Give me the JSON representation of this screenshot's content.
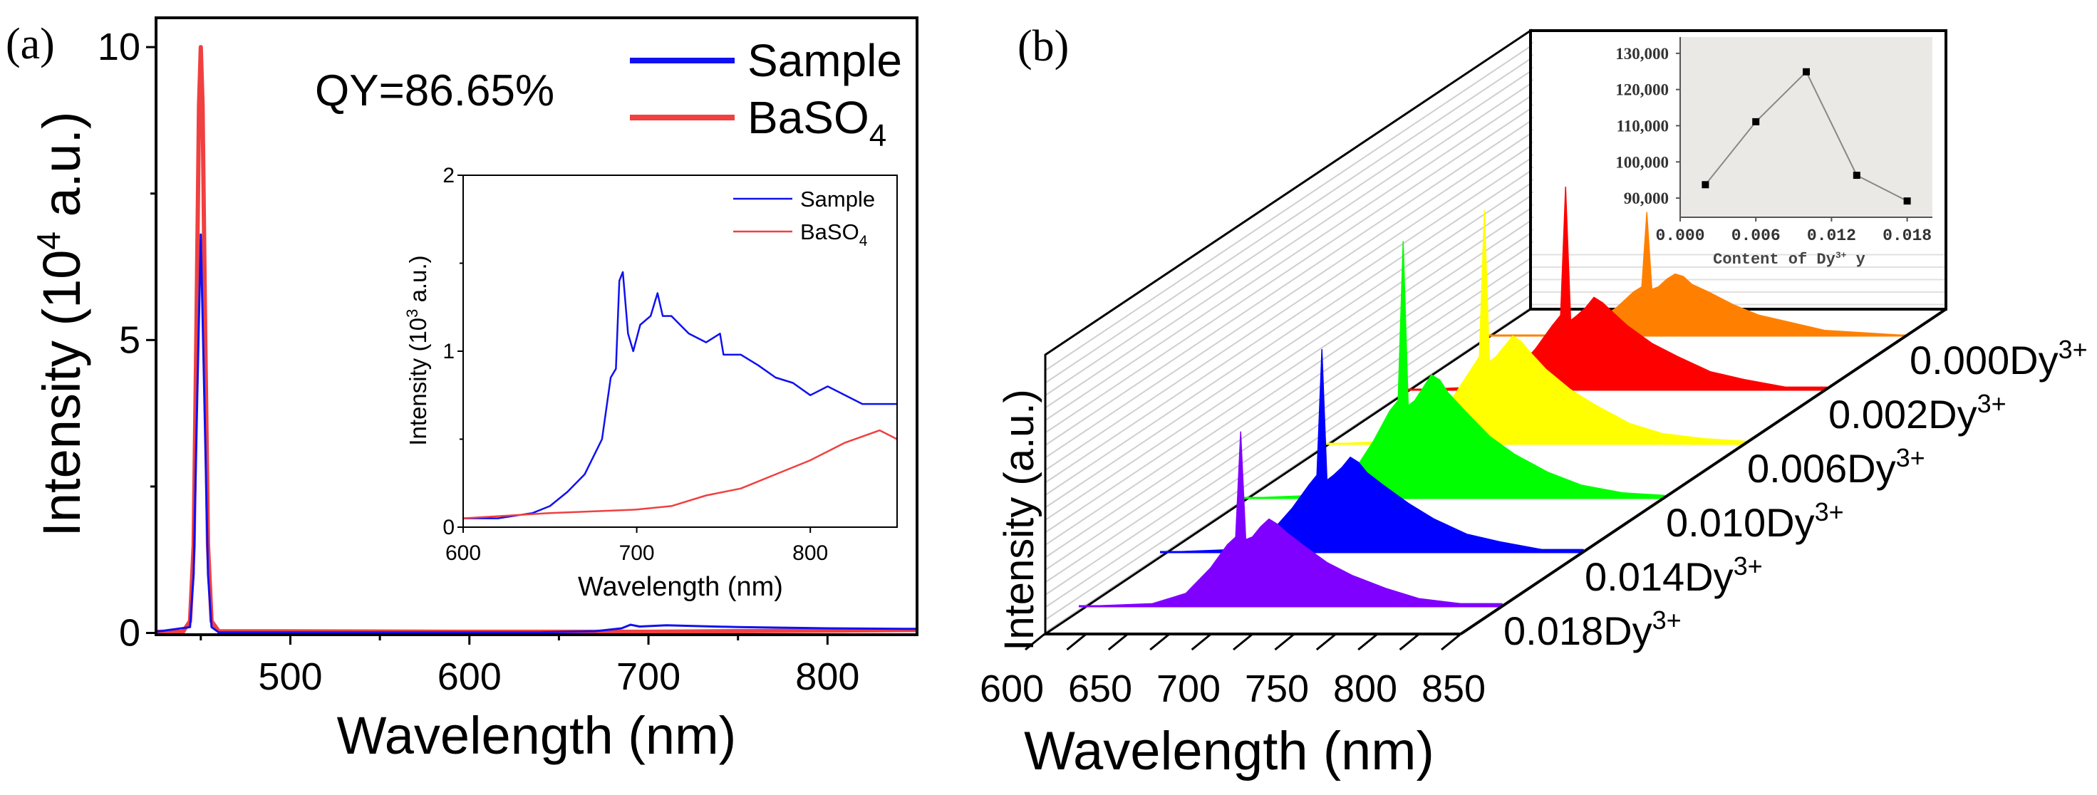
{
  "chart_data": [
    {
      "id": "a-main",
      "panel_label": "(a)",
      "type": "line",
      "xlabel": "Wavelength (nm)",
      "ylabel": {
        "pre": "Intensity (10",
        "sup": "4",
        "post": " a.u.)"
      },
      "xlim": [
        425,
        850
      ],
      "ylim": [
        -0.03,
        10.5
      ],
      "xticks": [
        500,
        600,
        700,
        800
      ],
      "yticks": [
        0,
        5,
        10
      ],
      "annotation": "QY=86.65%",
      "legend_position": "top-right",
      "legend": [
        {
          "text": "Sample",
          "sub": "",
          "color": "#1010f0"
        },
        {
          "text": "BaSO",
          "sub": "4",
          "color": "#f04040"
        }
      ],
      "series": [
        {
          "name": "BaSO4",
          "color": "#f04040",
          "x": [
            425,
            440,
            444,
            446,
            447.5,
            449,
            450,
            451,
            452.5,
            454,
            456,
            460,
            600,
            700,
            800,
            850
          ],
          "y": [
            0.02,
            0.02,
            0.2,
            1.5,
            5,
            9,
            10,
            9,
            5,
            1.5,
            0.2,
            0.03,
            0.02,
            0.02,
            0.04,
            0.05
          ]
        },
        {
          "name": "Sample",
          "color": "#1010f0",
          "x": [
            425,
            444,
            446,
            448,
            450,
            452,
            454,
            456,
            460,
            640,
            670,
            685,
            690,
            695,
            710,
            750,
            800,
            850
          ],
          "y": [
            0.02,
            0.1,
            1,
            4,
            6.8,
            4,
            1,
            0.1,
            0.01,
            0.01,
            0.03,
            0.08,
            0.14,
            0.11,
            0.13,
            0.1,
            0.08,
            0.07
          ]
        }
      ]
    },
    {
      "id": "a-inset",
      "type": "line",
      "xlabel": "Wavelength (nm)",
      "ylabel": {
        "pre": "Intensity (10",
        "sup": "3",
        "post": " a.u.)"
      },
      "xlim": [
        600,
        850
      ],
      "ylim": [
        0,
        2
      ],
      "xticks": [
        600,
        700,
        800
      ],
      "yticks": [
        0,
        1,
        2
      ],
      "legend_position": "top-right",
      "legend": [
        {
          "text": "Sample",
          "sub": "",
          "color": "#1010f0"
        },
        {
          "text": "BaSO",
          "sub": "4",
          "color": "#f04040"
        }
      ],
      "series": [
        {
          "name": "Sample",
          "color": "#1010f0",
          "x": [
            600,
            620,
            640,
            650,
            660,
            670,
            680,
            685,
            688,
            690,
            692,
            695,
            698,
            702,
            708,
            712,
            715,
            720,
            725,
            730,
            740,
            748,
            750,
            760,
            770,
            780,
            790,
            800,
            810,
            820,
            830,
            840,
            850
          ],
          "y": [
            0.05,
            0.05,
            0.08,
            0.12,
            0.2,
            0.3,
            0.5,
            0.85,
            0.9,
            1.4,
            1.45,
            1.1,
            1.0,
            1.15,
            1.2,
            1.33,
            1.2,
            1.2,
            1.15,
            1.1,
            1.05,
            1.1,
            0.98,
            0.98,
            0.92,
            0.85,
            0.82,
            0.75,
            0.8,
            0.75,
            0.7,
            0.7,
            0.7
          ]
        },
        {
          "name": "BaSO4",
          "color": "#f04040",
          "x": [
            600,
            650,
            700,
            720,
            740,
            760,
            780,
            800,
            820,
            840,
            850
          ],
          "y": [
            0.05,
            0.08,
            0.1,
            0.12,
            0.18,
            0.22,
            0.3,
            0.38,
            0.48,
            0.55,
            0.5
          ]
        }
      ]
    },
    {
      "id": "b-3d",
      "panel_label": "(b)",
      "type": "area",
      "xlabel": "Wavelength (nm)",
      "ylabel": "Intensity (a.u.)",
      "xlim": [
        600,
        850
      ],
      "xticks": [
        600,
        650,
        700,
        750,
        800,
        850
      ],
      "x": [
        600,
        640,
        660,
        675,
        685,
        690,
        693,
        696,
        700,
        705,
        710,
        715,
        720,
        730,
        745,
        760,
        780,
        800,
        825,
        850
      ],
      "series": [
        {
          "label": "0.000Dy",
          "sup": "3+",
          "color": "#ff8000",
          "values": [
            0,
            0,
            4,
            11,
            17,
            19,
            48,
            18,
            19,
            22,
            24,
            23,
            20,
            17,
            12,
            8,
            5,
            2,
            1,
            0
          ]
        },
        {
          "label": "0.002Dy",
          "sup": "3+",
          "color": "#ff0000",
          "values": [
            0,
            1,
            5,
            16,
            25,
            29,
            79,
            27,
            29,
            32,
            36,
            34,
            31,
            25,
            18,
            13,
            7,
            4,
            1,
            1
          ]
        },
        {
          "label": "0.006Dy",
          "sup": "3+",
          "color": "#ffff00",
          "values": [
            0,
            1,
            6,
            19,
            29,
            34,
            91,
            32,
            34,
            38,
            42,
            40,
            36,
            29,
            21,
            15,
            8,
            4,
            2,
            1
          ]
        },
        {
          "label": "0.010Dy",
          "sup": "3+",
          "color": "#00ff00",
          "values": [
            0,
            1,
            7,
            22,
            34,
            38,
            100,
            36,
            38,
            43,
            48,
            46,
            41,
            34,
            24,
            17,
            10,
            5,
            2,
            1
          ]
        },
        {
          "label": "0.014Dy",
          "sup": "3+",
          "color": "#0000ff",
          "values": [
            0,
            1,
            6,
            17,
            26,
            30,
            79,
            28,
            30,
            33,
            37,
            35,
            31,
            26,
            19,
            13,
            7,
            4,
            1,
            1
          ]
        },
        {
          "label": "0.018Dy",
          "sup": "3+",
          "color": "#8000ff",
          "values": [
            0,
            1,
            5,
            15,
            24,
            27,
            68,
            26,
            27,
            31,
            34,
            32,
            29,
            24,
            17,
            12,
            7,
            3,
            1,
            1
          ]
        }
      ]
    },
    {
      "id": "b-inset",
      "type": "line",
      "xlabel": {
        "pre": "Content of Dy",
        "sup": "3+",
        "post": " y"
      },
      "xlim": [
        0,
        0.02
      ],
      "ylim": [
        84700,
        134500
      ],
      "xticks": [
        "0.000",
        "0.006",
        "0.012",
        "0.018"
      ],
      "yticks": [
        "90,000",
        "100,000",
        "110,000",
        "120,000",
        "130,000"
      ],
      "background": "#ebe9e6",
      "x": [
        0.002,
        0.006,
        0.01,
        0.014,
        0.018
      ],
      "y": [
        93700,
        111100,
        124900,
        96300,
        89200
      ]
    }
  ]
}
